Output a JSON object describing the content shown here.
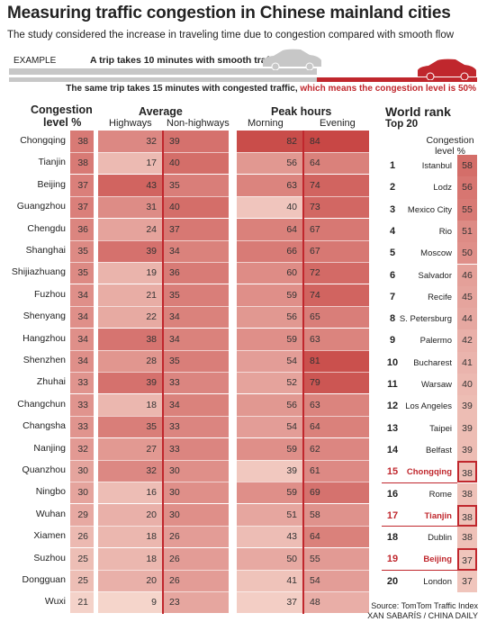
{
  "title": "Measuring traffic congestion in Chinese mainland cities",
  "subtitle": "The study considered the increase in traveling time due to congestion compared with smooth flow",
  "example": {
    "label": "EXAMPLE",
    "smooth_text": "A trip takes 10 minutes with smooth traffic",
    "congested_text": "The same trip takes 15 minutes with congested traffic,",
    "congested_highlight": "which means the congestion level is 50%"
  },
  "headers": {
    "congestion_1": "Congestion",
    "congestion_2": "level %",
    "average": "Average",
    "highways": "Highways",
    "non_highways": "Non-highways",
    "peak": "Peak hours",
    "morning": "Morning",
    "evening": "Evening"
  },
  "world": {
    "title": "World rank",
    "subtitle": "Top 20",
    "col_header_1": "Congestion",
    "col_header_2": "level %"
  },
  "chart_data": [
    {
      "type": "table",
      "title": "Measuring traffic congestion in Chinese mainland cities",
      "columns": [
        "City",
        "Congestion level %",
        "Highways",
        "Non-highways",
        "Morning",
        "Evening"
      ],
      "rows": [
        {
          "city": "Chongqing",
          "level": 38,
          "highways": 32,
          "non_highways": 39,
          "morning": 82,
          "evening": 84
        },
        {
          "city": "Tianjin",
          "level": 38,
          "highways": 17,
          "non_highways": 40,
          "morning": 56,
          "evening": 64
        },
        {
          "city": "Beijing",
          "level": 37,
          "highways": 43,
          "non_highways": 35,
          "morning": 63,
          "evening": 74
        },
        {
          "city": "Guangzhou",
          "level": 37,
          "highways": 31,
          "non_highways": 40,
          "morning": 40,
          "evening": 73
        },
        {
          "city": "Chengdu",
          "level": 36,
          "highways": 24,
          "non_highways": 37,
          "morning": 64,
          "evening": 67
        },
        {
          "city": "Shanghai",
          "level": 35,
          "highways": 39,
          "non_highways": 34,
          "morning": 66,
          "evening": 67
        },
        {
          "city": "Shijiazhuang",
          "level": 35,
          "highways": 19,
          "non_highways": 36,
          "morning": 60,
          "evening": 72
        },
        {
          "city": "Fuzhou",
          "level": 34,
          "highways": 21,
          "non_highways": 35,
          "morning": 59,
          "evening": 74
        },
        {
          "city": "Shenyang",
          "level": 34,
          "highways": 22,
          "non_highways": 34,
          "morning": 56,
          "evening": 65
        },
        {
          "city": "Hangzhou",
          "level": 34,
          "highways": 38,
          "non_highways": 34,
          "morning": 59,
          "evening": 63
        },
        {
          "city": "Shenzhen",
          "level": 34,
          "highways": 28,
          "non_highways": 35,
          "morning": 54,
          "evening": 81
        },
        {
          "city": "Zhuhai",
          "level": 33,
          "highways": 39,
          "non_highways": 33,
          "morning": 52,
          "evening": 79
        },
        {
          "city": "Changchun",
          "level": 33,
          "highways": 18,
          "non_highways": 34,
          "morning": 56,
          "evening": 63
        },
        {
          "city": "Changsha",
          "level": 33,
          "highways": 35,
          "non_highways": 33,
          "morning": 54,
          "evening": 64
        },
        {
          "city": "Nanjing",
          "level": 32,
          "highways": 27,
          "non_highways": 33,
          "morning": 59,
          "evening": 62
        },
        {
          "city": "Quanzhou",
          "level": 30,
          "highways": 32,
          "non_highways": 30,
          "morning": 39,
          "evening": 61
        },
        {
          "city": "Ningbo",
          "level": 30,
          "highways": 16,
          "non_highways": 30,
          "morning": 59,
          "evening": 69
        },
        {
          "city": "Wuhan",
          "level": 29,
          "highways": 20,
          "non_highways": 30,
          "morning": 51,
          "evening": 58
        },
        {
          "city": "Xiamen",
          "level": 26,
          "highways": 18,
          "non_highways": 26,
          "morning": 43,
          "evening": 64
        },
        {
          "city": "Suzhou",
          "level": 25,
          "highways": 18,
          "non_highways": 26,
          "morning": 50,
          "evening": 55
        },
        {
          "city": "Dongguan",
          "level": 25,
          "highways": 20,
          "non_highways": 26,
          "morning": 41,
          "evening": 54
        },
        {
          "city": "Wuxi",
          "level": 21,
          "highways": 9,
          "non_highways": 23,
          "morning": 37,
          "evening": 48
        }
      ]
    },
    {
      "type": "table",
      "title": "World rank",
      "subtitle": "Top 20",
      "columns": [
        "Rank",
        "City",
        "Congestion level %"
      ],
      "rows": [
        {
          "rank": 1,
          "city": "Istanbul",
          "level": 58
        },
        {
          "rank": 2,
          "city": "Lodz",
          "level": 56
        },
        {
          "rank": 3,
          "city": "Mexico City",
          "level": 55
        },
        {
          "rank": 4,
          "city": "Rio",
          "level": 51
        },
        {
          "rank": 5,
          "city": "Moscow",
          "level": 50
        },
        {
          "rank": 6,
          "city": "Salvador",
          "level": 46
        },
        {
          "rank": 7,
          "city": "Recife",
          "level": 45
        },
        {
          "rank": 8,
          "city": "S. Petersburg",
          "level": 44
        },
        {
          "rank": 9,
          "city": "Palermo",
          "level": 42
        },
        {
          "rank": 10,
          "city": "Bucharest",
          "level": 41
        },
        {
          "rank": 11,
          "city": "Warsaw",
          "level": 40
        },
        {
          "rank": 12,
          "city": "Los Angeles",
          "level": 39
        },
        {
          "rank": 13,
          "city": "Taipei",
          "level": 39
        },
        {
          "rank": 14,
          "city": "Belfast",
          "level": 39
        },
        {
          "rank": 15,
          "city": "Chongqing",
          "level": 38,
          "highlight": true
        },
        {
          "rank": 16,
          "city": "Rome",
          "level": 38
        },
        {
          "rank": 17,
          "city": "Tianjin",
          "level": 38,
          "highlight": true
        },
        {
          "rank": 18,
          "city": "Dublin",
          "level": 38
        },
        {
          "rank": 19,
          "city": "Beijing",
          "level": 37,
          "highlight": true
        },
        {
          "rank": 20,
          "city": "London",
          "level": 37
        }
      ]
    }
  ],
  "colors": {
    "accent": "#c0272d",
    "text": "#222222"
  },
  "source_line1": "Source: TomTom Traffic Index",
  "source_line2": "XAN SABARÍS / CHINA DAILY"
}
